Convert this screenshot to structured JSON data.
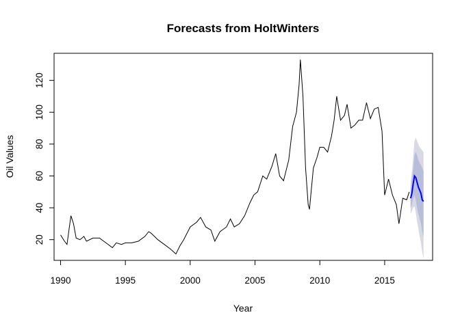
{
  "chart_data": {
    "type": "line",
    "title": "Forecasts from HoltWinters",
    "xlabel": "Year",
    "ylabel": "Oil Values",
    "xlim": [
      1989.5,
      2018.7
    ],
    "ylim": [
      7,
      137
    ],
    "x_ticks": [
      1990,
      1995,
      2000,
      2005,
      2010,
      2015
    ],
    "x_tick_labels": [
      "1990",
      "1995",
      "2000",
      "2005",
      "2010",
      "2015"
    ],
    "y_ticks": [
      20,
      40,
      60,
      80,
      100,
      120
    ],
    "y_tick_labels": [
      "20",
      "40",
      "60",
      "80",
      "100",
      "120"
    ],
    "grid": false,
    "legend": "none",
    "colors": {
      "observed": "#000000",
      "forecast": "#0000ff",
      "band_95": "#d9d9e3",
      "band_80": "#b8bdd9"
    },
    "series": [
      {
        "kind": "observed",
        "points": [
          [
            1990.0,
            23
          ],
          [
            1990.3,
            19
          ],
          [
            1990.5,
            17
          ],
          [
            1990.7,
            29
          ],
          [
            1990.8,
            35
          ],
          [
            1991.0,
            30
          ],
          [
            1991.2,
            21
          ],
          [
            1991.5,
            20
          ],
          [
            1991.8,
            22
          ],
          [
            1992.0,
            19
          ],
          [
            1992.5,
            21
          ],
          [
            1993.0,
            21
          ],
          [
            1993.5,
            18
          ],
          [
            1994.0,
            15
          ],
          [
            1994.3,
            18
          ],
          [
            1994.7,
            17
          ],
          [
            1995.0,
            18
          ],
          [
            1995.5,
            18
          ],
          [
            1996.0,
            19
          ],
          [
            1996.5,
            22
          ],
          [
            1996.8,
            25
          ],
          [
            1997.0,
            24
          ],
          [
            1997.5,
            20
          ],
          [
            1998.0,
            17
          ],
          [
            1998.5,
            14
          ],
          [
            1998.9,
            11
          ],
          [
            1999.2,
            16
          ],
          [
            1999.5,
            20
          ],
          [
            2000.0,
            28
          ],
          [
            2000.5,
            31
          ],
          [
            2000.8,
            34
          ],
          [
            2001.2,
            28
          ],
          [
            2001.6,
            26
          ],
          [
            2001.9,
            19
          ],
          [
            2002.3,
            25
          ],
          [
            2002.8,
            28
          ],
          [
            2003.1,
            33
          ],
          [
            2003.4,
            28
          ],
          [
            2003.8,
            30
          ],
          [
            2004.2,
            35
          ],
          [
            2004.6,
            43
          ],
          [
            2004.9,
            48
          ],
          [
            2005.2,
            50
          ],
          [
            2005.6,
            60
          ],
          [
            2005.9,
            58
          ],
          [
            2006.3,
            66
          ],
          [
            2006.6,
            74
          ],
          [
            2006.9,
            60
          ],
          [
            2007.2,
            57
          ],
          [
            2007.6,
            70
          ],
          [
            2007.9,
            91
          ],
          [
            2008.2,
            100
          ],
          [
            2008.4,
            117
          ],
          [
            2008.5,
            133
          ],
          [
            2008.7,
            110
          ],
          [
            2008.9,
            65
          ],
          [
            2009.1,
            42
          ],
          [
            2009.2,
            39
          ],
          [
            2009.5,
            65
          ],
          [
            2009.8,
            72
          ],
          [
            2010.0,
            78
          ],
          [
            2010.3,
            78
          ],
          [
            2010.6,
            75
          ],
          [
            2010.9,
            85
          ],
          [
            2011.1,
            95
          ],
          [
            2011.3,
            110
          ],
          [
            2011.6,
            95
          ],
          [
            2011.9,
            98
          ],
          [
            2012.1,
            105
          ],
          [
            2012.4,
            90
          ],
          [
            2012.7,
            92
          ],
          [
            2013.0,
            95
          ],
          [
            2013.3,
            95
          ],
          [
            2013.6,
            106
          ],
          [
            2013.9,
            96
          ],
          [
            2014.2,
            102
          ],
          [
            2014.5,
            103
          ],
          [
            2014.8,
            88
          ],
          [
            2015.0,
            48
          ],
          [
            2015.3,
            58
          ],
          [
            2015.6,
            48
          ],
          [
            2015.9,
            42
          ],
          [
            2016.1,
            30
          ],
          [
            2016.4,
            46
          ],
          [
            2016.7,
            45
          ],
          [
            2016.9,
            50
          ]
        ]
      },
      {
        "kind": "forecast",
        "x": [
          2017.0,
          2017.1,
          2017.2,
          2017.3,
          2017.4,
          2017.5,
          2017.6,
          2017.7,
          2017.8,
          2017.9,
          2018.0
        ],
        "values": [
          46,
          49,
          55,
          60,
          59,
          56,
          53,
          51,
          49,
          45,
          44
        ],
        "lower_80": [
          40,
          42,
          46,
          48,
          45,
          40,
          36,
          33,
          30,
          25,
          22
        ],
        "upper_80": [
          52,
          57,
          64,
          73,
          75,
          73,
          70,
          68,
          67,
          65,
          63
        ],
        "lower_95": [
          36,
          38,
          40,
          41,
          37,
          31,
          27,
          22,
          18,
          12,
          8
        ],
        "upper_95": [
          56,
          62,
          72,
          82,
          84,
          82,
          80,
          78,
          77,
          76,
          75
        ]
      }
    ]
  }
}
